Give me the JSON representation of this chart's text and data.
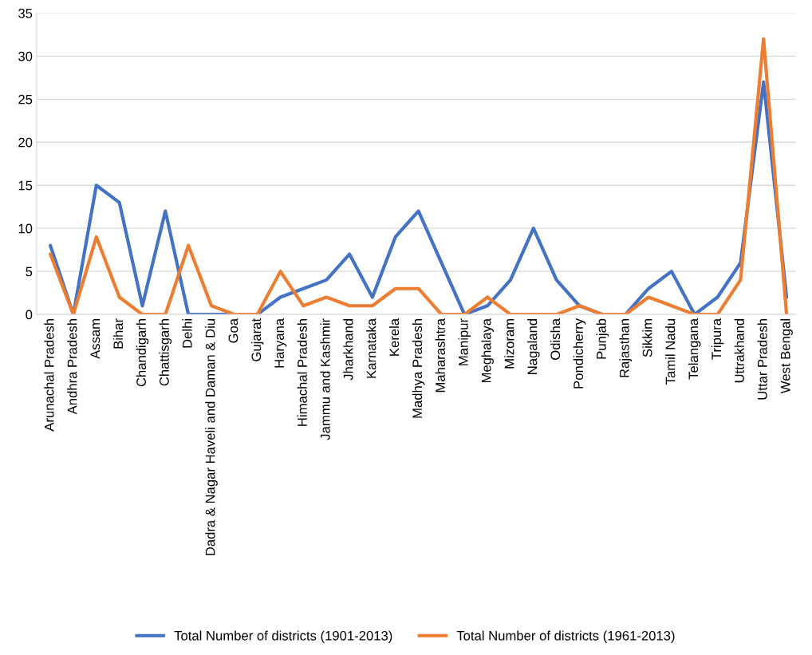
{
  "chart_data": {
    "type": "line",
    "categories": [
      "Arunachal Pradesh",
      "Andhra Pradesh",
      "Assam",
      "Bihar",
      "Chandigarh",
      "Chattisgarh",
      "Delhi",
      "Dadra & Nagar Haveli and Daman & Diu",
      "Goa",
      "Gujarat",
      "Haryana",
      "Himachal Pradesh",
      "Jammu and Kashmir",
      "Jharkhand",
      "Karnataka",
      "Kerela",
      "Madhya Pradesh",
      "Maharashtra",
      "Manipur",
      "Meghalaya",
      "Mizoram",
      "Nagaland",
      "Odisha",
      "Pondicherry",
      "Punjab",
      "Rajasthan",
      "Sikkim",
      "Tamil Nadu",
      "Telangana",
      "Tripura",
      "Uttrakhand",
      "Uttar Pradesh",
      "West Bengal"
    ],
    "series": [
      {
        "name": "Total Number of districts (1901-2013)",
        "color": "#4472c4",
        "values": [
          8,
          0,
          15,
          13,
          1,
          12,
          0,
          0,
          0,
          0,
          2,
          3,
          4,
          7,
          2,
          9,
          12,
          6,
          0,
          1,
          4,
          10,
          4,
          1,
          0,
          0,
          3,
          5,
          0,
          2,
          6,
          27,
          2
        ]
      },
      {
        "name": "Total Number of districts (1961-2013)",
        "color": "#ed7d31",
        "values": [
          7,
          0,
          9,
          2,
          0,
          0,
          8,
          1,
          0,
          0,
          5,
          1,
          2,
          1,
          1,
          3,
          3,
          0,
          0,
          2,
          0,
          0,
          0,
          1,
          0,
          0,
          2,
          1,
          0,
          0,
          4,
          32,
          0
        ]
      }
    ],
    "ylim": [
      0,
      35
    ],
    "yticks": [
      0,
      5,
      10,
      15,
      20,
      25,
      30,
      35
    ],
    "grid": "y",
    "legend": "bottom",
    "marker": "none",
    "line_style": "solid"
  }
}
